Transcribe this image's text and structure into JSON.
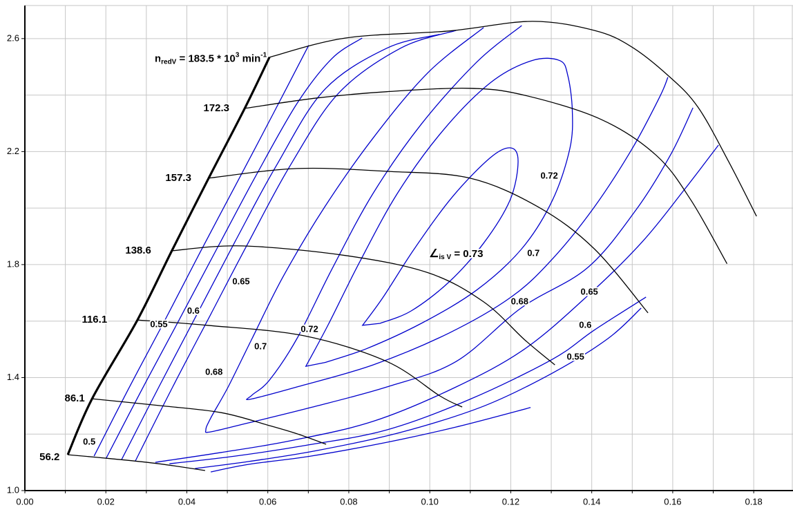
{
  "page": {
    "background": "#ffffff"
  },
  "chart_data": {
    "type": "contour",
    "title": "",
    "xlabel": "",
    "ylabel": "",
    "legend": "none",
    "grid": true,
    "x_axis": {
      "min": 0.0,
      "max": 0.1897,
      "grid_step": 0.01,
      "label_step": 0.02,
      "decimals": 2
    },
    "y_axis": {
      "min": 1.0,
      "max": 2.717,
      "grid_step": 0.2,
      "label_values": [
        1.0,
        1.4,
        1.8,
        2.2,
        2.6
      ],
      "decimals": 1
    },
    "colors": {
      "background": "#ffffff",
      "grid": "#c6c6c6",
      "axis": "#000000",
      "speed_line": "#000000",
      "surge_line": "#000000",
      "contour": "#0000cc",
      "text": "#000000"
    },
    "surge_line": {
      "points": [
        [
          0.0106,
          1.127
        ],
        [
          0.0166,
          1.325
        ],
        [
          0.0278,
          1.604
        ],
        [
          0.0363,
          1.849
        ],
        [
          0.0454,
          2.106
        ],
        [
          0.0543,
          2.353
        ],
        [
          0.0604,
          2.534
        ]
      ]
    },
    "speed_lines": [
      {
        "label": "56.2",
        "label_x": 0.0061,
        "label_y": 1.117,
        "points": [
          [
            0.0106,
            1.127
          ],
          [
            0.0212,
            1.113
          ],
          [
            0.0331,
            1.095
          ],
          [
            0.0445,
            1.071
          ]
        ]
      },
      {
        "label": "86.1",
        "label_x": 0.0123,
        "label_y": 1.325,
        "points": [
          [
            0.0166,
            1.325
          ],
          [
            0.0331,
            1.301
          ],
          [
            0.0485,
            1.276
          ],
          [
            0.0604,
            1.23
          ],
          [
            0.0672,
            1.201
          ],
          [
            0.0744,
            1.164
          ]
        ]
      },
      {
        "label": "116.1",
        "label_x": 0.0172,
        "label_y": 1.604,
        "points": [
          [
            0.0278,
            1.604
          ],
          [
            0.045,
            1.585
          ],
          [
            0.0689,
            1.548
          ],
          [
            0.0894,
            1.457
          ],
          [
            0.1025,
            1.335
          ],
          [
            0.108,
            1.296
          ]
        ]
      },
      {
        "label": "138.6",
        "label_x": 0.028,
        "label_y": 1.849,
        "points": [
          [
            0.0363,
            1.849
          ],
          [
            0.0536,
            1.866
          ],
          [
            0.0792,
            1.832
          ],
          [
            0.0996,
            1.771
          ],
          [
            0.1133,
            1.668
          ],
          [
            0.1235,
            1.533
          ],
          [
            0.1309,
            1.445
          ]
        ]
      },
      {
        "label": "157.3",
        "label_x": 0.0379,
        "label_y": 2.106,
        "points": [
          [
            0.0454,
            2.106
          ],
          [
            0.0672,
            2.14
          ],
          [
            0.0894,
            2.13
          ],
          [
            0.1099,
            2.106
          ],
          [
            0.1269,
            2.003
          ],
          [
            0.1406,
            1.856
          ],
          [
            0.1539,
            1.629
          ]
        ]
      },
      {
        "label": "172.3",
        "label_x": 0.0473,
        "label_y": 2.353,
        "points": [
          [
            0.0543,
            2.353
          ],
          [
            0.0723,
            2.39
          ],
          [
            0.0894,
            2.412
          ],
          [
            0.1099,
            2.424
          ],
          [
            0.1235,
            2.399
          ],
          [
            0.1423,
            2.314
          ],
          [
            0.1559,
            2.187
          ],
          [
            0.1645,
            2.028
          ],
          [
            0.1734,
            1.803
          ]
        ]
      },
      {
        "label": "",
        "label_x": 0.0604,
        "label_y": 2.534,
        "points": [
          [
            0.0604,
            2.534
          ],
          [
            0.0792,
            2.602
          ],
          [
            0.1048,
            2.627
          ],
          [
            0.1253,
            2.661
          ],
          [
            0.1406,
            2.629
          ],
          [
            0.1496,
            2.573
          ],
          [
            0.1588,
            2.47
          ],
          [
            0.1662,
            2.358
          ],
          [
            0.1739,
            2.162
          ],
          [
            0.1807,
            1.971
          ]
        ]
      }
    ],
    "speed_annotation": {
      "x": 0.0459,
      "y": 2.527,
      "prefix": "n",
      "prefix_sub": "redV",
      "mid": " = 183.5 * 10",
      "exponent": "3",
      "unit": " min",
      "unit_exponent": "-1"
    },
    "efficiency_annotation": {
      "x": 0.1065,
      "y": 1.837,
      "symbol": "∠",
      "symbol_sub": "is V",
      "rest": " = 0.73"
    },
    "efficiency_contours": [
      {
        "level": 0.5,
        "closed": false,
        "paths": [
          [
            [
              0.0171,
              1.122
            ],
            [
              0.0254,
              1.355
            ],
            [
              0.034,
              1.587
            ],
            [
              0.0433,
              1.844
            ],
            [
              0.0519,
              2.077
            ],
            [
              0.0613,
              2.333
            ],
            [
              0.0701,
              2.576
            ]
          ],
          [
            [
              0.0459,
              1.066
            ],
            [
              0.0553,
              1.093
            ],
            [
              0.0706,
              1.122
            ],
            [
              0.0894,
              1.171
            ],
            [
              0.1065,
              1.225
            ],
            [
              0.1249,
              1.294
            ]
          ]
        ]
      },
      {
        "level": 0.55,
        "closed": false,
        "paths": [
          [
            [
              0.0201,
              1.115
            ],
            [
              0.0288,
              1.355
            ],
            [
              0.0379,
              1.599
            ],
            [
              0.0476,
              1.861
            ],
            [
              0.057,
              2.113
            ],
            [
              0.0672,
              2.37
            ],
            [
              0.0758,
              2.529
            ],
            [
              0.0833,
              2.602
            ]
          ],
          [
            [
              0.042,
              1.078
            ],
            [
              0.0553,
              1.103
            ],
            [
              0.0723,
              1.142
            ],
            [
              0.0928,
              1.206
            ],
            [
              0.1133,
              1.299
            ],
            [
              0.1303,
              1.416
            ],
            [
              0.144,
              1.538
            ],
            [
              0.1522,
              1.646
            ]
          ]
        ]
      },
      {
        "level": 0.6,
        "closed": false,
        "paths": [
          [
            [
              0.0239,
              1.11
            ],
            [
              0.0331,
              1.367
            ],
            [
              0.0425,
              1.624
            ],
            [
              0.0519,
              1.881
            ],
            [
              0.0621,
              2.15
            ],
            [
              0.074,
              2.419
            ],
            [
              0.0894,
              2.566
            ],
            [
              0.1024,
              2.615
            ]
          ],
          [
            [
              0.0357,
              1.095
            ],
            [
              0.0519,
              1.122
            ],
            [
              0.0689,
              1.159
            ],
            [
              0.0894,
              1.215
            ],
            [
              0.1099,
              1.323
            ],
            [
              0.1303,
              1.465
            ],
            [
              0.1406,
              1.568
            ],
            [
              0.1534,
              1.685
            ]
          ]
        ]
      },
      {
        "level": 0.65,
        "closed": false,
        "paths": [
          [
            [
              0.0273,
              1.105
            ],
            [
              0.0365,
              1.367
            ],
            [
              0.0459,
              1.624
            ],
            [
              0.0553,
              1.881
            ],
            [
              0.0655,
              2.15
            ],
            [
              0.0775,
              2.407
            ],
            [
              0.0928,
              2.566
            ],
            [
              0.1065,
              2.629
            ]
          ],
          [
            [
              0.0322,
              1.1
            ],
            [
              0.0485,
              1.135
            ],
            [
              0.0655,
              1.176
            ],
            [
              0.086,
              1.245
            ],
            [
              0.1065,
              1.367
            ],
            [
              0.1235,
              1.502
            ],
            [
              0.1394,
              1.695
            ],
            [
              0.1525,
              1.881
            ],
            [
              0.1628,
              2.064
            ],
            [
              0.1713,
              2.223
            ]
          ]
        ]
      },
      {
        "level": 0.68,
        "closed": false,
        "paths": [
          [
            [
              0.1133,
              2.639
            ],
            [
              0.0996,
              2.48
            ],
            [
              0.086,
              2.248
            ],
            [
              0.074,
              2.003
            ],
            [
              0.0638,
              1.758
            ],
            [
              0.0561,
              1.538
            ],
            [
              0.0502,
              1.367
            ],
            [
              0.0459,
              1.257
            ],
            [
              0.0447,
              1.215
            ],
            [
              0.0459,
              1.208
            ],
            [
              0.0553,
              1.24
            ],
            [
              0.0706,
              1.294
            ],
            [
              0.0894,
              1.367
            ],
            [
              0.1065,
              1.457
            ],
            [
              0.1227,
              1.648
            ],
            [
              0.1389,
              1.788
            ],
            [
              0.1508,
              1.991
            ],
            [
              0.1594,
              2.187
            ],
            [
              0.165,
              2.355
            ]
          ]
        ]
      },
      {
        "level": 0.7,
        "closed": false,
        "paths": [
          [
            [
              0.1227,
              2.646
            ],
            [
              0.1116,
              2.517
            ],
            [
              0.0979,
              2.297
            ],
            [
              0.086,
              2.052
            ],
            [
              0.0758,
              1.783
            ],
            [
              0.0672,
              1.538
            ],
            [
              0.0604,
              1.391
            ],
            [
              0.0561,
              1.338
            ],
            [
              0.0556,
              1.323
            ],
            [
              0.0672,
              1.367
            ],
            [
              0.086,
              1.445
            ],
            [
              0.1048,
              1.558
            ],
            [
              0.1201,
              1.685
            ],
            [
              0.1303,
              1.82
            ],
            [
              0.1406,
              2.003
            ],
            [
              0.15,
              2.211
            ],
            [
              0.1568,
              2.394
            ],
            [
              0.1588,
              2.463
            ]
          ]
        ]
      },
      {
        "level": 0.72,
        "closed": true,
        "paths": [
          [
            [
              0.0694,
              1.44
            ],
            [
              0.0749,
              1.587
            ],
            [
              0.0826,
              1.807
            ],
            [
              0.092,
              2.052
            ],
            [
              0.1031,
              2.272
            ],
            [
              0.115,
              2.444
            ],
            [
              0.1252,
              2.522
            ],
            [
              0.1321,
              2.522
            ],
            [
              0.1341,
              2.468
            ],
            [
              0.1352,
              2.346
            ],
            [
              0.1346,
              2.211
            ],
            [
              0.1303,
              2.028
            ],
            [
              0.1227,
              1.856
            ],
            [
              0.1116,
              1.71
            ],
            [
              0.0979,
              1.592
            ],
            [
              0.0843,
              1.502
            ],
            [
              0.074,
              1.453
            ]
          ]
        ]
      },
      {
        "level": 0.73,
        "closed": true,
        "paths": [
          [
            [
              0.0834,
              1.585
            ],
            [
              0.0885,
              1.685
            ],
            [
              0.0962,
              1.856
            ],
            [
              0.1056,
              2.04
            ],
            [
              0.115,
              2.179
            ],
            [
              0.1201,
              2.213
            ],
            [
              0.1218,
              2.162
            ],
            [
              0.1198,
              2.028
            ],
            [
              0.1133,
              1.876
            ],
            [
              0.1048,
              1.739
            ],
            [
              0.0954,
              1.636
            ],
            [
              0.0877,
              1.592
            ]
          ]
        ]
      }
    ],
    "contour_labels": [
      {
        "text": "0.5",
        "x": 0.0159,
        "y": 1.171
      },
      {
        "text": "0.55",
        "x": 0.0331,
        "y": 1.587
      },
      {
        "text": "0.6",
        "x": 0.0416,
        "y": 1.634
      },
      {
        "text": "0.65",
        "x": 0.0534,
        "y": 1.739
      },
      {
        "text": "0.68",
        "x": 0.0467,
        "y": 1.418
      },
      {
        "text": "0.7",
        "x": 0.0582,
        "y": 1.509
      },
      {
        "text": "0.72",
        "x": 0.0703,
        "y": 1.57
      },
      {
        "text": "0.72",
        "x": 0.1295,
        "y": 2.113
      },
      {
        "text": "0.7",
        "x": 0.1256,
        "y": 1.839
      },
      {
        "text": "0.68",
        "x": 0.1222,
        "y": 1.668
      },
      {
        "text": "0.65",
        "x": 0.1394,
        "y": 1.702
      },
      {
        "text": "0.6",
        "x": 0.1384,
        "y": 1.585
      },
      {
        "text": "0.55",
        "x": 0.136,
        "y": 1.472
      }
    ]
  }
}
